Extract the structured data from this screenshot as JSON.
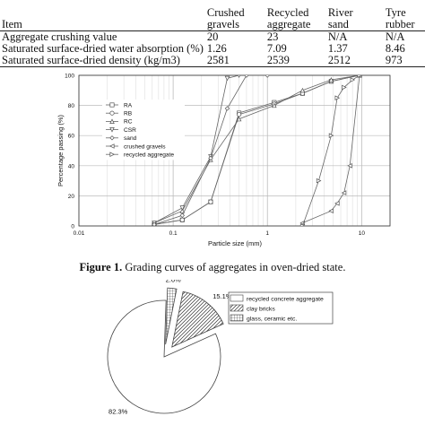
{
  "table": {
    "headers": [
      "Item",
      "Crushed gravels",
      "Recycled aggregate",
      "River sand",
      "Tyre rubber"
    ],
    "rows": [
      [
        "Aggregate crushing value",
        "20",
        "23",
        "N/A",
        "N/A"
      ],
      [
        "Saturated surface-dried water absorption (%)",
        "1.26",
        "7.09",
        "1.37",
        "8.46"
      ],
      [
        "Saturated surface-dried density (kg/m3)",
        "2581",
        "2539",
        "2512",
        "973"
      ]
    ]
  },
  "caption": {
    "label": "Figure 1.",
    "text": " Grading curves of aggregates in oven-dried state."
  },
  "chart_data": [
    {
      "type": "line",
      "xlabel": "Particle size (mm)",
      "ylabel": "Percentage passing (%)",
      "x_scale": "log",
      "xlim": [
        0.01,
        20
      ],
      "ylim": [
        0,
        100
      ],
      "x_ticks": [
        "0.01",
        "0.1",
        "1",
        "10"
      ],
      "y_ticks": [
        0,
        20,
        40,
        60,
        80,
        100
      ],
      "grid": true,
      "legend_position": "top-left",
      "series": [
        {
          "name": "RA",
          "marker": "square",
          "x": [
            0.063,
            0.125,
            0.25,
            0.5,
            1.18,
            2.36,
            4.75,
            9.5
          ],
          "y": [
            1,
            4,
            16,
            75,
            82,
            88,
            96,
            100
          ]
        },
        {
          "name": "RB",
          "marker": "circle",
          "x": [
            0.063,
            0.125,
            0.25,
            0.5,
            1.18,
            2.36,
            4.75,
            9.5
          ],
          "y": [
            1,
            4,
            16,
            74,
            81,
            88,
            96,
            100
          ]
        },
        {
          "name": "RC",
          "marker": "triangle-up",
          "x": [
            0.063,
            0.125,
            0.25,
            0.5,
            1.18,
            2.36,
            4.75,
            9.5
          ],
          "y": [
            2,
            10,
            44,
            71,
            80,
            90,
            97,
            100
          ]
        },
        {
          "name": "CSR",
          "marker": "triangle-down",
          "x": [
            0.063,
            0.125,
            0.25,
            0.375,
            0.5
          ],
          "y": [
            2,
            12,
            46,
            98,
            100
          ]
        },
        {
          "name": "sand",
          "marker": "diamond",
          "x": [
            0.063,
            0.125,
            0.25,
            0.375,
            0.6,
            1.0
          ],
          "y": [
            1,
            7,
            45,
            78,
            100,
            100
          ]
        },
        {
          "name": "crushed gravels",
          "marker": "triangle-left",
          "x": [
            2.36,
            4.75,
            5.5,
            6.5,
            7.5,
            9.5
          ],
          "y": [
            2,
            10,
            15,
            22,
            40,
            100
          ]
        },
        {
          "name": "recycled aggregate",
          "marker": "triangle-right",
          "x": [
            2.36,
            3.5,
            4.75,
            5.5,
            6.5,
            8.0,
            9.5
          ],
          "y": [
            0,
            30,
            60,
            85,
            92,
            97,
            100
          ]
        }
      ]
    },
    {
      "type": "pie",
      "legend_position": "right",
      "slices": [
        {
          "name": "recycled concrete aggregate",
          "value": 82.3,
          "label": "82.3%",
          "fill": "none",
          "exploded": false
        },
        {
          "name": "clay bricks",
          "value": 15.1,
          "label": "15.1%",
          "fill": "diagonal",
          "exploded": true
        },
        {
          "name": "glass, ceramic etc.",
          "value": 2.6,
          "label": "2.6%",
          "fill": "grid",
          "exploded": true
        }
      ]
    }
  ]
}
